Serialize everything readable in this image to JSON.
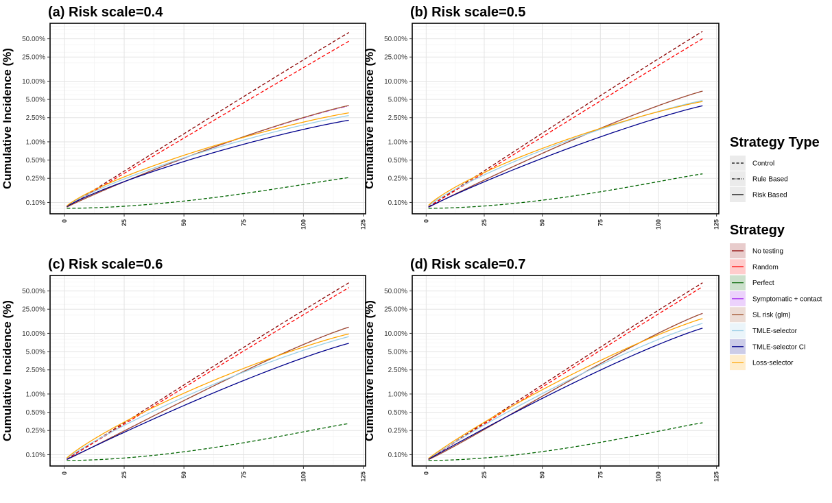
{
  "chart_data": {
    "type": "line",
    "ylabel": "Cumulative Incidence (%)",
    "yscale": "log",
    "y_ticks": [
      {
        "value": 0.1,
        "label": "0.10%"
      },
      {
        "value": 0.25,
        "label": "0.25%"
      },
      {
        "value": 0.5,
        "label": "0.50%"
      },
      {
        "value": 1,
        "label": "1.00%"
      },
      {
        "value": 2.5,
        "label": "2.50%"
      },
      {
        "value": 5,
        "label": "5.00%"
      },
      {
        "value": 10,
        "label": "10.00%"
      },
      {
        "value": 25,
        "label": "25.00%"
      },
      {
        "value": 50,
        "label": "50.00%"
      }
    ],
    "x_ticks": [
      0,
      25,
      50,
      75,
      100,
      125
    ],
    "x_domain": [
      -6,
      126
    ],
    "legend": {
      "type_title": "Strategy Type",
      "types": [
        {
          "name": "Control",
          "dash": "dashed"
        },
        {
          "name": "Rule Based",
          "dash": "dotdash"
        },
        {
          "name": "Risk Based",
          "dash": "solid"
        }
      ],
      "strategy_title": "Strategy",
      "strategies": [
        {
          "name": "No testing",
          "color": "#8B0000"
        },
        {
          "name": "Random",
          "color": "#FF0000"
        },
        {
          "name": "Perfect",
          "color": "#006400"
        },
        {
          "name": "Symptomatic + contact",
          "color": "#A020F0"
        },
        {
          "name": "SL risk (glm)",
          "color": "#A0522D"
        },
        {
          "name": "TMLE-selector",
          "color": "#9ACFE6"
        },
        {
          "name": "TMLE-selector CI",
          "color": "#00008B"
        },
        {
          "name": "Loss-selector",
          "color": "#FFA500"
        }
      ]
    },
    "panels": [
      {
        "title": "(a) Risk scale=0.4",
        "series": [
          {
            "name": "No testing",
            "type": "Control",
            "start": 0.08,
            "end": 67,
            "shape": 3.2,
            "mid": 0.33,
            "steep": 0.055
          },
          {
            "name": "Random",
            "type": "Control",
            "start": 0.08,
            "end": 48,
            "shape": 3.0,
            "mid": 0.45,
            "steep": 0.048
          },
          {
            "name": "Perfect",
            "type": "Control",
            "start": 0.08,
            "end": 0.26,
            "shape": 0.55
          },
          {
            "name": "Symptomatic + contact",
            "type": "Rule Based",
            "start": 0.08,
            "end": 4.0,
            "shape": 1.05
          },
          {
            "name": "SL risk (glm)",
            "type": "Risk Based",
            "start": 0.08,
            "end": 4.05,
            "shape": 1.05
          },
          {
            "name": "TMLE-selector",
            "type": "Risk Based",
            "start": 0.08,
            "end": 2.75,
            "shape": 1.22
          },
          {
            "name": "TMLE-selector CI",
            "type": "Risk Based",
            "start": 0.08,
            "end": 2.3,
            "shape": 1.18
          },
          {
            "name": "Loss-selector",
            "type": "Risk Based",
            "start": 0.08,
            "end": 3.05,
            "shape": 1.26
          }
        ]
      },
      {
        "title": "(b) Risk scale=0.5",
        "series": [
          {
            "name": "No testing",
            "type": "Control",
            "start": 0.08,
            "end": 70,
            "shape": 3.2,
            "mid": 0.31,
            "steep": 0.057
          },
          {
            "name": "Random",
            "type": "Control",
            "start": 0.08,
            "end": 53,
            "shape": 3.0,
            "mid": 0.42,
            "steep": 0.05
          },
          {
            "name": "Perfect",
            "type": "Control",
            "start": 0.08,
            "end": 0.3,
            "shape": 0.55
          },
          {
            "name": "Symptomatic + contact",
            "type": "Rule Based",
            "start": 0.08,
            "end": 7.0,
            "shape": 1.0
          },
          {
            "name": "SL risk (glm)",
            "type": "Risk Based",
            "start": 0.08,
            "end": 7.0,
            "shape": 1.0
          },
          {
            "name": "TMLE-selector",
            "type": "Risk Based",
            "start": 0.08,
            "end": 4.9,
            "shape": 1.2
          },
          {
            "name": "TMLE-selector CI",
            "type": "Risk Based",
            "start": 0.08,
            "end": 4.0,
            "shape": 1.05
          },
          {
            "name": "Loss-selector",
            "type": "Risk Based",
            "start": 0.08,
            "end": 4.7,
            "shape": 1.28
          }
        ]
      },
      {
        "title": "(c) Risk scale=0.6",
        "series": [
          {
            "name": "No testing",
            "type": "Control",
            "start": 0.08,
            "end": 72,
            "shape": 3.2,
            "mid": 0.3,
            "steep": 0.058
          },
          {
            "name": "Random",
            "type": "Control",
            "start": 0.08,
            "end": 60,
            "shape": 3.0,
            "mid": 0.4,
            "steep": 0.052
          },
          {
            "name": "Perfect",
            "type": "Control",
            "start": 0.08,
            "end": 0.33,
            "shape": 0.55
          },
          {
            "name": "Symptomatic + contact",
            "type": "Rule Based",
            "start": 0.08,
            "end": 13,
            "shape": 0.95
          },
          {
            "name": "SL risk (glm)",
            "type": "Risk Based",
            "start": 0.08,
            "end": 13,
            "shape": 0.95
          },
          {
            "name": "TMLE-selector",
            "type": "Risk Based",
            "start": 0.08,
            "end": 9.0,
            "shape": 1.12
          },
          {
            "name": "TMLE-selector CI",
            "type": "Risk Based",
            "start": 0.08,
            "end": 7.0,
            "shape": 1.0
          },
          {
            "name": "Loss-selector",
            "type": "Risk Based",
            "start": 0.08,
            "end": 10,
            "shape": 1.18
          }
        ]
      },
      {
        "title": "(d) Risk scale=0.7",
        "series": [
          {
            "name": "No testing",
            "type": "Control",
            "start": 0.08,
            "end": 72,
            "shape": 3.2,
            "mid": 0.29,
            "steep": 0.06
          },
          {
            "name": "Random",
            "type": "Control",
            "start": 0.08,
            "end": 62,
            "shape": 3.0,
            "mid": 0.38,
            "steep": 0.054
          },
          {
            "name": "Perfect",
            "type": "Control",
            "start": 0.08,
            "end": 0.34,
            "shape": 0.55
          },
          {
            "name": "Symptomatic + contact",
            "type": "Rule Based",
            "start": 0.08,
            "end": 22,
            "shape": 0.92
          },
          {
            "name": "SL risk (glm)",
            "type": "Risk Based",
            "start": 0.08,
            "end": 22,
            "shape": 0.92
          },
          {
            "name": "TMLE-selector",
            "type": "Risk Based",
            "start": 0.08,
            "end": 15,
            "shape": 1.05
          },
          {
            "name": "TMLE-selector CI",
            "type": "Risk Based",
            "start": 0.08,
            "end": 12.5,
            "shape": 1.0
          },
          {
            "name": "Loss-selector",
            "type": "Risk Based",
            "start": 0.08,
            "end": 18,
            "shape": 1.08
          }
        ]
      }
    ]
  }
}
